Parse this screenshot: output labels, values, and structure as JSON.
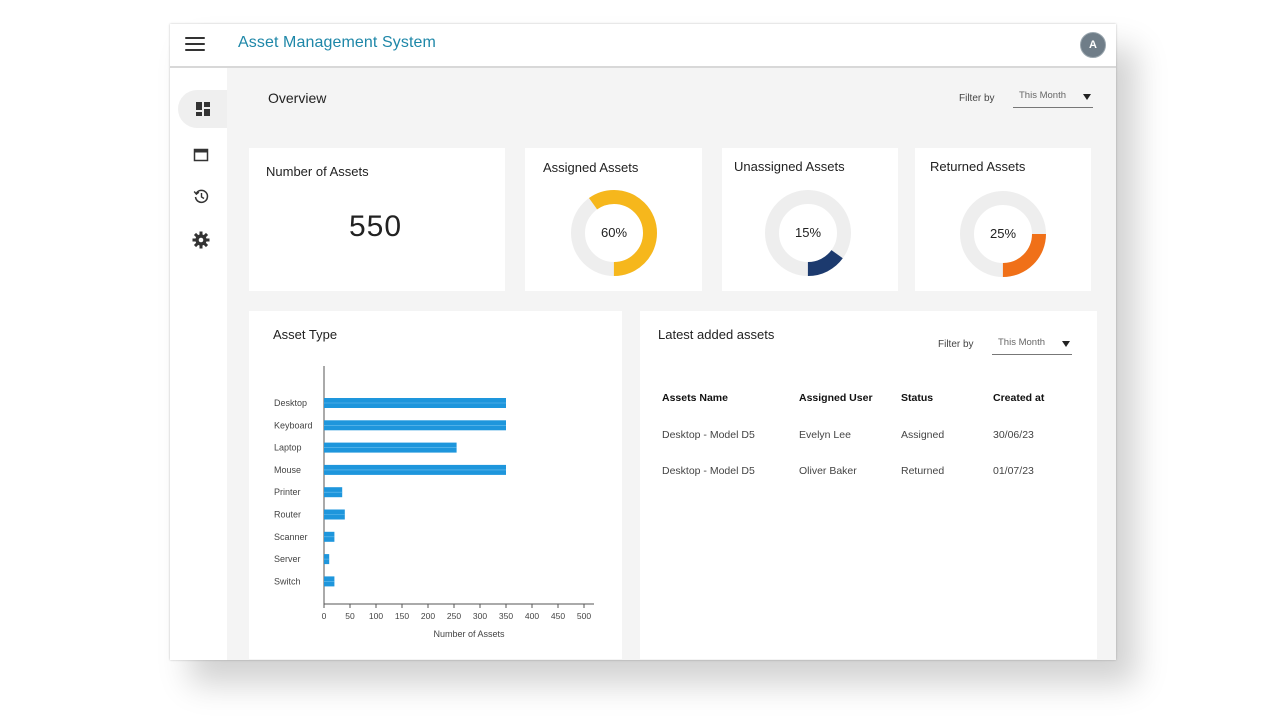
{
  "app": {
    "title": "Asset Management System",
    "avatar_initial": "A"
  },
  "sidebar": {
    "items": [
      {
        "icon": "dashboard-icon",
        "active": true
      },
      {
        "icon": "window-icon"
      },
      {
        "icon": "history-icon"
      },
      {
        "icon": "gear-icon"
      }
    ]
  },
  "overview": {
    "title": "Overview",
    "filter_label": "Filter by",
    "filter_value": "This Month"
  },
  "stats": {
    "number_of_assets": {
      "label": "Number of Assets",
      "value": "550"
    },
    "assigned": {
      "label": "Assigned Assets",
      "percent_text": "60%",
      "percent": 60,
      "color": "#f6b71c"
    },
    "unassigned": {
      "label": "Unassigned Assets",
      "percent_text": "15%",
      "percent": 15,
      "color": "#1c3a6e"
    },
    "returned": {
      "label": "Returned Assets",
      "percent_text": "25%",
      "percent": 25,
      "color": "#f07018"
    }
  },
  "asset_type": {
    "title": "Asset Type",
    "chart_data": {
      "type": "bar",
      "orientation": "horizontal",
      "categories": [
        "Desktop",
        "Keyboard",
        "Laptop",
        "Mouse",
        "Printer",
        "Router",
        "Scanner",
        "Server",
        "Switch"
      ],
      "values": [
        350,
        350,
        255,
        350,
        35,
        40,
        20,
        10,
        20
      ],
      "xlabel": "Number of Assets",
      "xlim": [
        0,
        500
      ],
      "xticks": [
        0,
        50,
        100,
        150,
        200,
        250,
        300,
        350,
        400,
        450,
        500
      ],
      "bar_color": "#1e96dc"
    }
  },
  "latest": {
    "title": "Latest added assets",
    "filter_label": "Filter by",
    "filter_value": "This Month",
    "columns": [
      "Assets Name",
      "Assigned User",
      "Status",
      "Created at"
    ],
    "rows": [
      [
        "Desktop - Model D5",
        "Evelyn Lee",
        "Assigned",
        "30/06/23"
      ],
      [
        "Desktop - Model D5",
        "Oliver Baker",
        "Returned",
        "01/07/23"
      ]
    ]
  }
}
